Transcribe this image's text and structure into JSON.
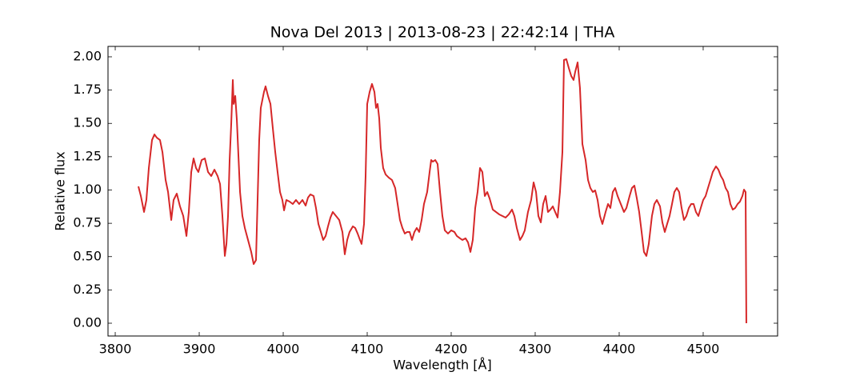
{
  "chart_data": {
    "type": "line",
    "title": "Nova Del 2013 | 2013-08-23 | 22:42:14 | THA",
    "x_label": "Wavelength [Å]",
    "y_label": "Relative flux",
    "color": "#d62728",
    "xlim": [
      3791.4,
      4588.6
    ],
    "ylim": [
      -0.096,
      2.078
    ],
    "xticks": [
      3800,
      3900,
      4000,
      4100,
      4200,
      4300,
      4400,
      4500
    ],
    "yticks": [
      {
        "value": 0,
        "label": "0.00"
      },
      {
        "value": 0.25,
        "label": "0.25"
      },
      {
        "value": 0.5,
        "label": "0.50"
      },
      {
        "value": 0.75,
        "label": "0.75"
      },
      {
        "value": 1,
        "label": "1.00"
      },
      {
        "value": 1.25,
        "label": "1.25"
      },
      {
        "value": 1.5,
        "label": "1.50"
      },
      {
        "value": 1.75,
        "label": "1.75"
      },
      {
        "value": 2,
        "label": "2.00"
      }
    ],
    "grid": false,
    "x": [
      3827.6,
      3830.5,
      3834.3,
      3837.1,
      3840.0,
      3843.8,
      3846.7,
      3849.5,
      3853.3,
      3856.2,
      3860.0,
      3862.9,
      3866.7,
      3869.5,
      3873.3,
      3877.1,
      3881.0,
      3884.8,
      3887.6,
      3890.5,
      3893.3,
      3896.2,
      3899.0,
      3902.9,
      3906.7,
      3910.5,
      3914.3,
      3918.1,
      3921.9,
      3924.8,
      3927.6,
      3930.5,
      3932.4,
      3934.3,
      3936.2,
      3938.1,
      3940.0,
      3941.0,
      3942.9,
      3944.8,
      3946.7,
      3948.6,
      3951.4,
      3954.3,
      3958.1,
      3961.9,
      3964.8,
      3967.6,
      3969.5,
      3971.4,
      3973.3,
      3977.1,
      3979.0,
      3981.9,
      3984.8,
      3987.6,
      3990.5,
      3993.3,
      3996.2,
      3999.0,
      4001.0,
      4003.8,
      4007.6,
      4011.4,
      4015.2,
      4019.0,
      4022.9,
      4026.7,
      4029.5,
      4032.4,
      4036.2,
      4039.0,
      4041.9,
      4044.8,
      4047.6,
      4050.5,
      4053.3,
      4056.2,
      4059.0,
      4062.9,
      4066.7,
      4070.5,
      4073.3,
      4076.2,
      4079.0,
      4082.9,
      4085.7,
      4088.6,
      4091.4,
      4093.3,
      4096.2,
      4098.1,
      4100.0,
      4102.9,
      4105.7,
      4108.6,
      4110.5,
      4112.4,
      4114.3,
      4116.2,
      4119.0,
      4121.9,
      4125.7,
      4129.5,
      4133.3,
      4136.2,
      4139.0,
      4141.9,
      4144.8,
      4147.6,
      4150.5,
      4153.3,
      4156.2,
      4159.0,
      4161.9,
      4164.8,
      4167.6,
      4171.4,
      4174.3,
      4176.2,
      4178.1,
      4181.0,
      4183.8,
      4186.7,
      4189.5,
      4192.4,
      4196.2,
      4200.0,
      4203.8,
      4206.7,
      4210.5,
      4213.3,
      4217.1,
      4220.0,
      4222.9,
      4225.7,
      4228.6,
      4231.4,
      4234.3,
      4237.1,
      4240.0,
      4242.9,
      4245.7,
      4249.5,
      4253.3,
      4257.1,
      4261.0,
      4264.8,
      4268.6,
      4272.4,
      4275.2,
      4278.1,
      4281.9,
      4284.8,
      4287.6,
      4291.4,
      4295.2,
      4298.1,
      4301.0,
      4303.8,
      4306.7,
      4309.5,
      4312.4,
      4315.2,
      4318.1,
      4321.0,
      4323.8,
      4326.7,
      4329.5,
      4332.4,
      4334.3,
      4337.1,
      4340.0,
      4342.9,
      4345.7,
      4347.6,
      4350.5,
      4353.3,
      4356.2,
      4360.0,
      4362.9,
      4365.7,
      4368.6,
      4371.4,
      4374.3,
      4377.1,
      4380.0,
      4383.8,
      4386.7,
      4389.5,
      4392.4,
      4395.2,
      4398.1,
      4401.9,
      4405.7,
      4408.6,
      4412.4,
      4415.2,
      4418.1,
      4421.0,
      4423.8,
      4426.7,
      4429.5,
      4432.4,
      4435.2,
      4439.0,
      4441.9,
      4444.8,
      4448.6,
      4451.4,
      4454.3,
      4457.1,
      4460.0,
      4462.9,
      4465.7,
      4468.6,
      4471.4,
      4474.3,
      4477.1,
      4480.0,
      4482.9,
      4485.7,
      4488.6,
      4491.4,
      4494.3,
      4497.1,
      4500.0,
      4502.9,
      4505.7,
      4508.6,
      4511.4,
      4515.2,
      4518.1,
      4521.0,
      4523.8,
      4526.7,
      4529.5,
      4532.4,
      4535.2,
      4538.1,
      4541.0,
      4543.8,
      4546.7,
      4548.6,
      4550.5,
      4551.4
    ],
    "values": [
      1.027,
      0.955,
      0.835,
      0.925,
      1.165,
      1.375,
      1.417,
      1.393,
      1.375,
      1.285,
      1.075,
      0.985,
      0.775,
      0.925,
      0.973,
      0.877,
      0.805,
      0.655,
      0.835,
      1.135,
      1.237,
      1.165,
      1.135,
      1.225,
      1.237,
      1.135,
      1.105,
      1.153,
      1.105,
      1.045,
      0.805,
      0.505,
      0.595,
      0.805,
      1.225,
      1.495,
      1.826,
      1.646,
      1.706,
      1.526,
      1.255,
      0.985,
      0.805,
      0.715,
      0.625,
      0.535,
      0.444,
      0.474,
      0.925,
      1.375,
      1.616,
      1.736,
      1.778,
      1.706,
      1.646,
      1.465,
      1.285,
      1.135,
      0.985,
      0.925,
      0.847,
      0.925,
      0.913,
      0.895,
      0.925,
      0.895,
      0.925,
      0.883,
      0.943,
      0.967,
      0.955,
      0.865,
      0.745,
      0.685,
      0.625,
      0.655,
      0.727,
      0.793,
      0.835,
      0.805,
      0.775,
      0.685,
      0.517,
      0.625,
      0.685,
      0.727,
      0.715,
      0.673,
      0.625,
      0.595,
      0.745,
      1.105,
      1.646,
      1.736,
      1.796,
      1.736,
      1.616,
      1.646,
      1.538,
      1.315,
      1.165,
      1.117,
      1.093,
      1.075,
      1.015,
      0.895,
      0.775,
      0.715,
      0.673,
      0.685,
      0.685,
      0.625,
      0.685,
      0.715,
      0.685,
      0.775,
      0.895,
      0.985,
      1.135,
      1.225,
      1.213,
      1.225,
      1.195,
      0.985,
      0.805,
      0.697,
      0.673,
      0.697,
      0.685,
      0.655,
      0.637,
      0.625,
      0.637,
      0.607,
      0.535,
      0.625,
      0.865,
      0.985,
      1.165,
      1.135,
      0.955,
      0.985,
      0.937,
      0.853,
      0.835,
      0.817,
      0.805,
      0.793,
      0.817,
      0.853,
      0.805,
      0.715,
      0.625,
      0.655,
      0.697,
      0.835,
      0.925,
      1.057,
      0.985,
      0.805,
      0.757,
      0.895,
      0.955,
      0.835,
      0.853,
      0.877,
      0.835,
      0.793,
      0.985,
      1.285,
      1.976,
      1.982,
      1.916,
      1.856,
      1.826,
      1.886,
      1.958,
      1.766,
      1.345,
      1.225,
      1.075,
      1.015,
      0.985,
      0.997,
      0.925,
      0.805,
      0.745,
      0.835,
      0.895,
      0.865,
      0.985,
      1.015,
      0.955,
      0.895,
      0.835,
      0.865,
      0.955,
      1.015,
      1.033,
      0.937,
      0.835,
      0.685,
      0.535,
      0.505,
      0.595,
      0.805,
      0.895,
      0.925,
      0.877,
      0.757,
      0.685,
      0.745,
      0.805,
      0.895,
      0.985,
      1.015,
      0.985,
      0.865,
      0.775,
      0.805,
      0.865,
      0.895,
      0.895,
      0.835,
      0.805,
      0.865,
      0.925,
      0.955,
      1.015,
      1.075,
      1.135,
      1.177,
      1.153,
      1.105,
      1.075,
      1.015,
      0.985,
      0.895,
      0.853,
      0.865,
      0.895,
      0.913,
      0.955,
      1.003,
      0.985,
      0.0
    ]
  }
}
